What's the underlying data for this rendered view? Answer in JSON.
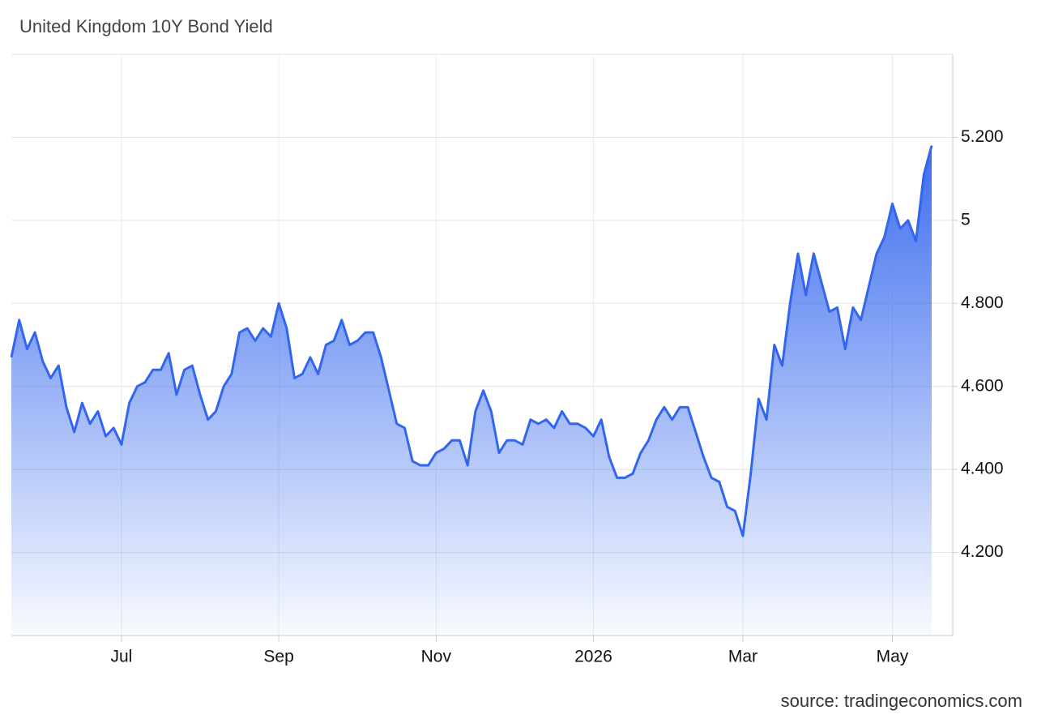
{
  "chart_data": {
    "type": "area",
    "title": "United Kingdom 10Y Bond Yield",
    "source": "source: tradingeconomics.com",
    "color": "#3366ee",
    "grid": true,
    "ylim": [
      4.0,
      5.4
    ],
    "yticks": [
      {
        "value": 4.2,
        "label": "4.200"
      },
      {
        "value": 4.4,
        "label": "4.400"
      },
      {
        "value": 4.6,
        "label": "4.600"
      },
      {
        "value": 4.8,
        "label": "4.800"
      },
      5,
      {
        "value": 5.2,
        "label": "5.200"
      }
    ],
    "categories": [
      null,
      null,
      null,
      null,
      null,
      null,
      null,
      null,
      null,
      null,
      null,
      null,
      null,
      null,
      "Jul",
      null,
      null,
      null,
      null,
      null,
      null,
      null,
      null,
      null,
      null,
      null,
      null,
      null,
      null,
      null,
      null,
      null,
      null,
      null,
      "Sep",
      null,
      null,
      null,
      null,
      null,
      null,
      null,
      null,
      null,
      null,
      null,
      null,
      null,
      null,
      null,
      null,
      null,
      null,
      null,
      "Nov",
      null,
      null,
      null,
      null,
      null,
      null,
      null,
      null,
      null,
      null,
      null,
      null,
      null,
      null,
      null,
      null,
      null,
      null,
      null,
      "2026",
      null,
      null,
      null,
      null,
      null,
      null,
      null,
      null,
      null,
      null,
      null,
      null,
      null,
      null,
      null,
      null,
      null,
      null,
      "Mar",
      null,
      null,
      null,
      null,
      null,
      null,
      null,
      null,
      null,
      null,
      null,
      null,
      null,
      null,
      null,
      null,
      null,
      null,
      "May",
      null,
      null,
      null,
      null,
      null
    ],
    "values": [
      4.67,
      4.76,
      4.69,
      4.73,
      4.66,
      4.62,
      4.65,
      4.55,
      4.49,
      4.56,
      4.51,
      4.54,
      4.48,
      4.5,
      4.46,
      4.56,
      4.6,
      4.61,
      4.64,
      4.64,
      4.68,
      4.58,
      4.64,
      4.65,
      4.58,
      4.52,
      4.54,
      4.6,
      4.63,
      4.73,
      4.74,
      4.71,
      4.74,
      4.72,
      4.8,
      4.74,
      4.62,
      4.63,
      4.67,
      4.63,
      4.7,
      4.71,
      4.76,
      4.7,
      4.71,
      4.73,
      4.73,
      4.67,
      4.59,
      4.51,
      4.5,
      4.42,
      4.41,
      4.41,
      4.44,
      4.45,
      4.47,
      4.47,
      4.41,
      4.54,
      4.59,
      4.54,
      4.44,
      4.47,
      4.47,
      4.46,
      4.52,
      4.51,
      4.52,
      4.5,
      4.54,
      4.51,
      4.51,
      4.5,
      4.48,
      4.52,
      4.43,
      4.38,
      4.38,
      4.39,
      4.44,
      4.47,
      4.52,
      4.55,
      4.52,
      4.55,
      4.55,
      4.49,
      4.43,
      4.38,
      4.37,
      4.31,
      4.3,
      4.24,
      4.39,
      4.57,
      4.52,
      4.7,
      4.65,
      4.8,
      4.92,
      4.82,
      4.92,
      4.85,
      4.78,
      4.79,
      4.69,
      4.79,
      4.76,
      4.84,
      4.92,
      4.96,
      5.04,
      4.98,
      5.0,
      4.95,
      5.11,
      5.18
    ]
  }
}
